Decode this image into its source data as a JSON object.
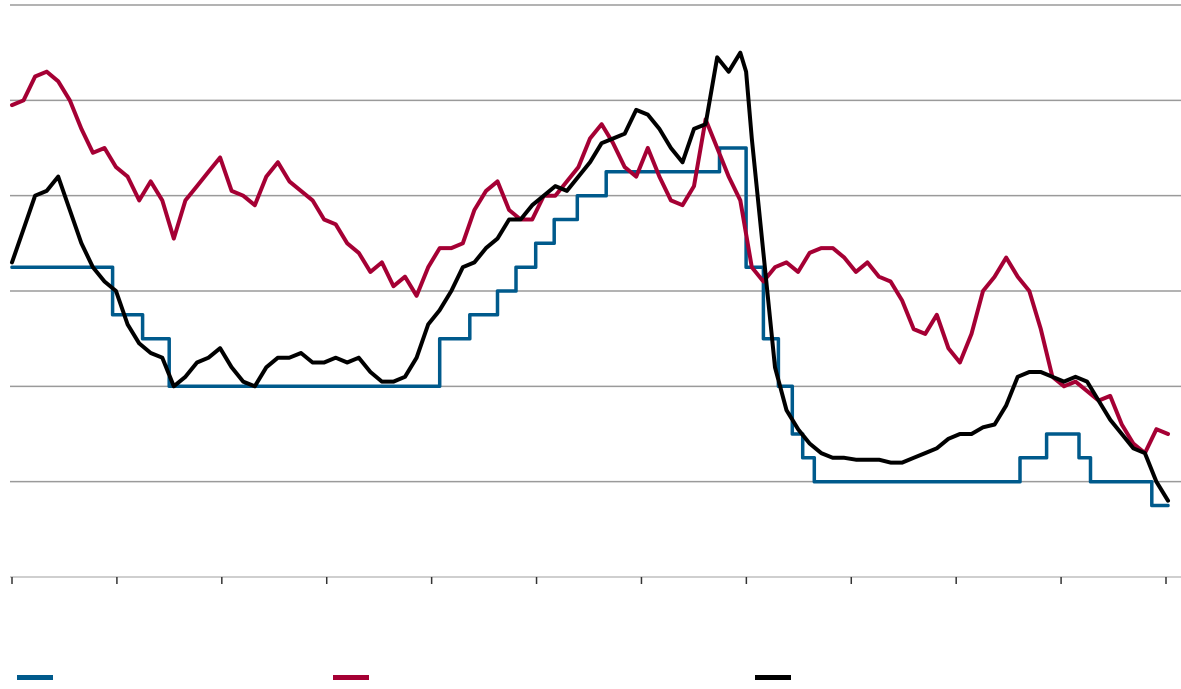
{
  "chart_data": {
    "type": "line",
    "title": "",
    "xlabel": "",
    "ylabel": "",
    "x_ticks": [
      "",
      "",
      "",
      "",
      "",
      "",
      "",
      "",
      "",
      "",
      "",
      ""
    ],
    "y_ticks": [
      "",
      "",
      "",
      "",
      "",
      ""
    ],
    "grid": "horizontal",
    "legend": "bottom",
    "xlim": [
      0,
      100
    ],
    "ylim": [
      0,
      6
    ],
    "series": [
      {
        "name": "",
        "color": "#005a8c",
        "step": true,
        "points": [
          [
            0,
            3.25
          ],
          [
            8.7,
            3.25
          ],
          [
            8.7,
            2.75
          ],
          [
            11.3,
            2.75
          ],
          [
            11.3,
            2.5
          ],
          [
            13.6,
            2.5
          ],
          [
            13.6,
            2.0
          ],
          [
            37,
            2.0
          ],
          [
            37,
            2.5
          ],
          [
            39.6,
            2.5
          ],
          [
            39.6,
            2.75
          ],
          [
            42,
            2.75
          ],
          [
            42,
            3.0
          ],
          [
            43.6,
            3.0
          ],
          [
            43.6,
            3.25
          ],
          [
            45.3,
            3.25
          ],
          [
            45.3,
            3.5
          ],
          [
            46.9,
            3.5
          ],
          [
            46.9,
            3.75
          ],
          [
            48.9,
            3.75
          ],
          [
            48.9,
            4.0
          ],
          [
            51.4,
            4.0
          ],
          [
            51.4,
            4.25
          ],
          [
            61.2,
            4.25
          ],
          [
            61.2,
            4.5
          ],
          [
            63.5,
            4.5
          ],
          [
            63.5,
            3.25
          ],
          [
            65.0,
            3.25
          ],
          [
            65.0,
            2.5
          ],
          [
            66.3,
            2.5
          ],
          [
            66.3,
            2.0
          ],
          [
            67.5,
            2.0
          ],
          [
            67.5,
            1.5
          ],
          [
            68.4,
            1.5
          ],
          [
            68.4,
            1.25
          ],
          [
            69.4,
            1.25
          ],
          [
            69.4,
            1.0
          ],
          [
            87.2,
            1.0
          ],
          [
            87.2,
            1.25
          ],
          [
            89.5,
            1.25
          ],
          [
            89.5,
            1.5
          ],
          [
            92.3,
            1.5
          ],
          [
            92.3,
            1.25
          ],
          [
            93.3,
            1.25
          ],
          [
            93.3,
            1.0
          ],
          [
            98.6,
            1.0
          ],
          [
            98.6,
            0.75
          ],
          [
            100,
            0.75
          ]
        ]
      },
      {
        "name": "",
        "color": "#a50034",
        "step": false,
        "points": [
          [
            0,
            4.95
          ],
          [
            1,
            5.0
          ],
          [
            2,
            5.25
          ],
          [
            3,
            5.3
          ],
          [
            4,
            5.2
          ],
          [
            5,
            5.0
          ],
          [
            6,
            4.7
          ],
          [
            7,
            4.45
          ],
          [
            8,
            4.5
          ],
          [
            9,
            4.3
          ],
          [
            10,
            4.2
          ],
          [
            11,
            3.95
          ],
          [
            12,
            4.15
          ],
          [
            13,
            3.95
          ],
          [
            14,
            3.55
          ],
          [
            15,
            3.95
          ],
          [
            16,
            4.1
          ],
          [
            17,
            4.25
          ],
          [
            18,
            4.4
          ],
          [
            19,
            4.05
          ],
          [
            20,
            4.0
          ],
          [
            21,
            3.9
          ],
          [
            22,
            4.2
          ],
          [
            23,
            4.35
          ],
          [
            24,
            4.15
          ],
          [
            25,
            4.05
          ],
          [
            26,
            3.95
          ],
          [
            27,
            3.75
          ],
          [
            28,
            3.7
          ],
          [
            29,
            3.5
          ],
          [
            30,
            3.4
          ],
          [
            31,
            3.2
          ],
          [
            32,
            3.3
          ],
          [
            33,
            3.05
          ],
          [
            34,
            3.15
          ],
          [
            35,
            2.95
          ],
          [
            36,
            3.25
          ],
          [
            37,
            3.45
          ],
          [
            38,
            3.45
          ],
          [
            39,
            3.5
          ],
          [
            40,
            3.85
          ],
          [
            41,
            4.05
          ],
          [
            42,
            4.15
          ],
          [
            43,
            3.85
          ],
          [
            44,
            3.75
          ],
          [
            45,
            3.75
          ],
          [
            46,
            4.0
          ],
          [
            47,
            4.0
          ],
          [
            48,
            4.15
          ],
          [
            49,
            4.3
          ],
          [
            50,
            4.6
          ],
          [
            51,
            4.75
          ],
          [
            52,
            4.55
          ],
          [
            53,
            4.3
          ],
          [
            54,
            4.2
          ],
          [
            55,
            4.5
          ],
          [
            56,
            4.2
          ],
          [
            57,
            3.95
          ],
          [
            58,
            3.9
          ],
          [
            59,
            4.1
          ],
          [
            60,
            4.8
          ],
          [
            61,
            4.5
          ],
          [
            62,
            4.2
          ],
          [
            63,
            3.95
          ],
          [
            64,
            3.25
          ],
          [
            65,
            3.1
          ],
          [
            66,
            3.25
          ],
          [
            67,
            3.3
          ],
          [
            68,
            3.2
          ],
          [
            69,
            3.4
          ],
          [
            70,
            3.45
          ],
          [
            71,
            3.45
          ],
          [
            72,
            3.35
          ],
          [
            73,
            3.2
          ],
          [
            74,
            3.3
          ],
          [
            75,
            3.15
          ],
          [
            76,
            3.1
          ],
          [
            77,
            2.9
          ],
          [
            78,
            2.6
          ],
          [
            79,
            2.55
          ],
          [
            80,
            2.75
          ],
          [
            81,
            2.4
          ],
          [
            82,
            2.25
          ],
          [
            83,
            2.55
          ],
          [
            84,
            3.0
          ],
          [
            85,
            3.15
          ],
          [
            86,
            3.35
          ],
          [
            87,
            3.15
          ],
          [
            88,
            3.0
          ],
          [
            89,
            2.6
          ],
          [
            90,
            2.1
          ],
          [
            91,
            2.0
          ],
          [
            92,
            2.05
          ],
          [
            93,
            1.95
          ],
          [
            94,
            1.85
          ],
          [
            95,
            1.9
          ],
          [
            96,
            1.6
          ],
          [
            97,
            1.4
          ],
          [
            98,
            1.3
          ],
          [
            99,
            1.55
          ],
          [
            100,
            1.5
          ]
        ]
      },
      {
        "name": "",
        "color": "#000000",
        "step": false,
        "points": [
          [
            0,
            3.3
          ],
          [
            1,
            3.65
          ],
          [
            2,
            4.0
          ],
          [
            3,
            4.05
          ],
          [
            4,
            4.2
          ],
          [
            5,
            3.85
          ],
          [
            6,
            3.5
          ],
          [
            7,
            3.25
          ],
          [
            8,
            3.1
          ],
          [
            9,
            3.0
          ],
          [
            10,
            2.65
          ],
          [
            11,
            2.45
          ],
          [
            12,
            2.35
          ],
          [
            13,
            2.3
          ],
          [
            14,
            2.0
          ],
          [
            15,
            2.1
          ],
          [
            16,
            2.25
          ],
          [
            17,
            2.3
          ],
          [
            18,
            2.4
          ],
          [
            19,
            2.2
          ],
          [
            20,
            2.05
          ],
          [
            21,
            2.0
          ],
          [
            22,
            2.2
          ],
          [
            23,
            2.3
          ],
          [
            24,
            2.3
          ],
          [
            25,
            2.35
          ],
          [
            26,
            2.25
          ],
          [
            27,
            2.25
          ],
          [
            28,
            2.3
          ],
          [
            29,
            2.25
          ],
          [
            30,
            2.3
          ],
          [
            31,
            2.15
          ],
          [
            32,
            2.05
          ],
          [
            33,
            2.05
          ],
          [
            34,
            2.1
          ],
          [
            35,
            2.3
          ],
          [
            36,
            2.65
          ],
          [
            37,
            2.8
          ],
          [
            38,
            3.0
          ],
          [
            39,
            3.25
          ],
          [
            40,
            3.3
          ],
          [
            41,
            3.45
          ],
          [
            42,
            3.55
          ],
          [
            43,
            3.75
          ],
          [
            44,
            3.75
          ],
          [
            45,
            3.9
          ],
          [
            46,
            4.0
          ],
          [
            47,
            4.1
          ],
          [
            48,
            4.05
          ],
          [
            49,
            4.2
          ],
          [
            50,
            4.35
          ],
          [
            51,
            4.55
          ],
          [
            52,
            4.6
          ],
          [
            53,
            4.65
          ],
          [
            54,
            4.9
          ],
          [
            55,
            4.85
          ],
          [
            56,
            4.7
          ],
          [
            57,
            4.5
          ],
          [
            58,
            4.35
          ],
          [
            59,
            4.7
          ],
          [
            60,
            4.75
          ],
          [
            61,
            5.45
          ],
          [
            62,
            5.3
          ],
          [
            63,
            5.5
          ],
          [
            63.5,
            5.3
          ],
          [
            64,
            4.6
          ],
          [
            65,
            3.4
          ],
          [
            66,
            2.2
          ],
          [
            67,
            1.75
          ],
          [
            68,
            1.55
          ],
          [
            69,
            1.4
          ],
          [
            70,
            1.3
          ],
          [
            71,
            1.25
          ],
          [
            72,
            1.25
          ],
          [
            73,
            1.23
          ],
          [
            74,
            1.23
          ],
          [
            75,
            1.23
          ],
          [
            76,
            1.2
          ],
          [
            77,
            1.2
          ],
          [
            78,
            1.25
          ],
          [
            79,
            1.3
          ],
          [
            80,
            1.35
          ],
          [
            81,
            1.45
          ],
          [
            82,
            1.5
          ],
          [
            83,
            1.5
          ],
          [
            84,
            1.57
          ],
          [
            85,
            1.6
          ],
          [
            86,
            1.8
          ],
          [
            87,
            2.1
          ],
          [
            88,
            2.15
          ],
          [
            89,
            2.15
          ],
          [
            90,
            2.1
          ],
          [
            91,
            2.05
          ],
          [
            92,
            2.1
          ],
          [
            93,
            2.05
          ],
          [
            94,
            1.85
          ],
          [
            95,
            1.65
          ],
          [
            96,
            1.5
          ],
          [
            97,
            1.35
          ],
          [
            98,
            1.3
          ],
          [
            99,
            1.0
          ],
          [
            100,
            0.8
          ]
        ]
      }
    ]
  }
}
